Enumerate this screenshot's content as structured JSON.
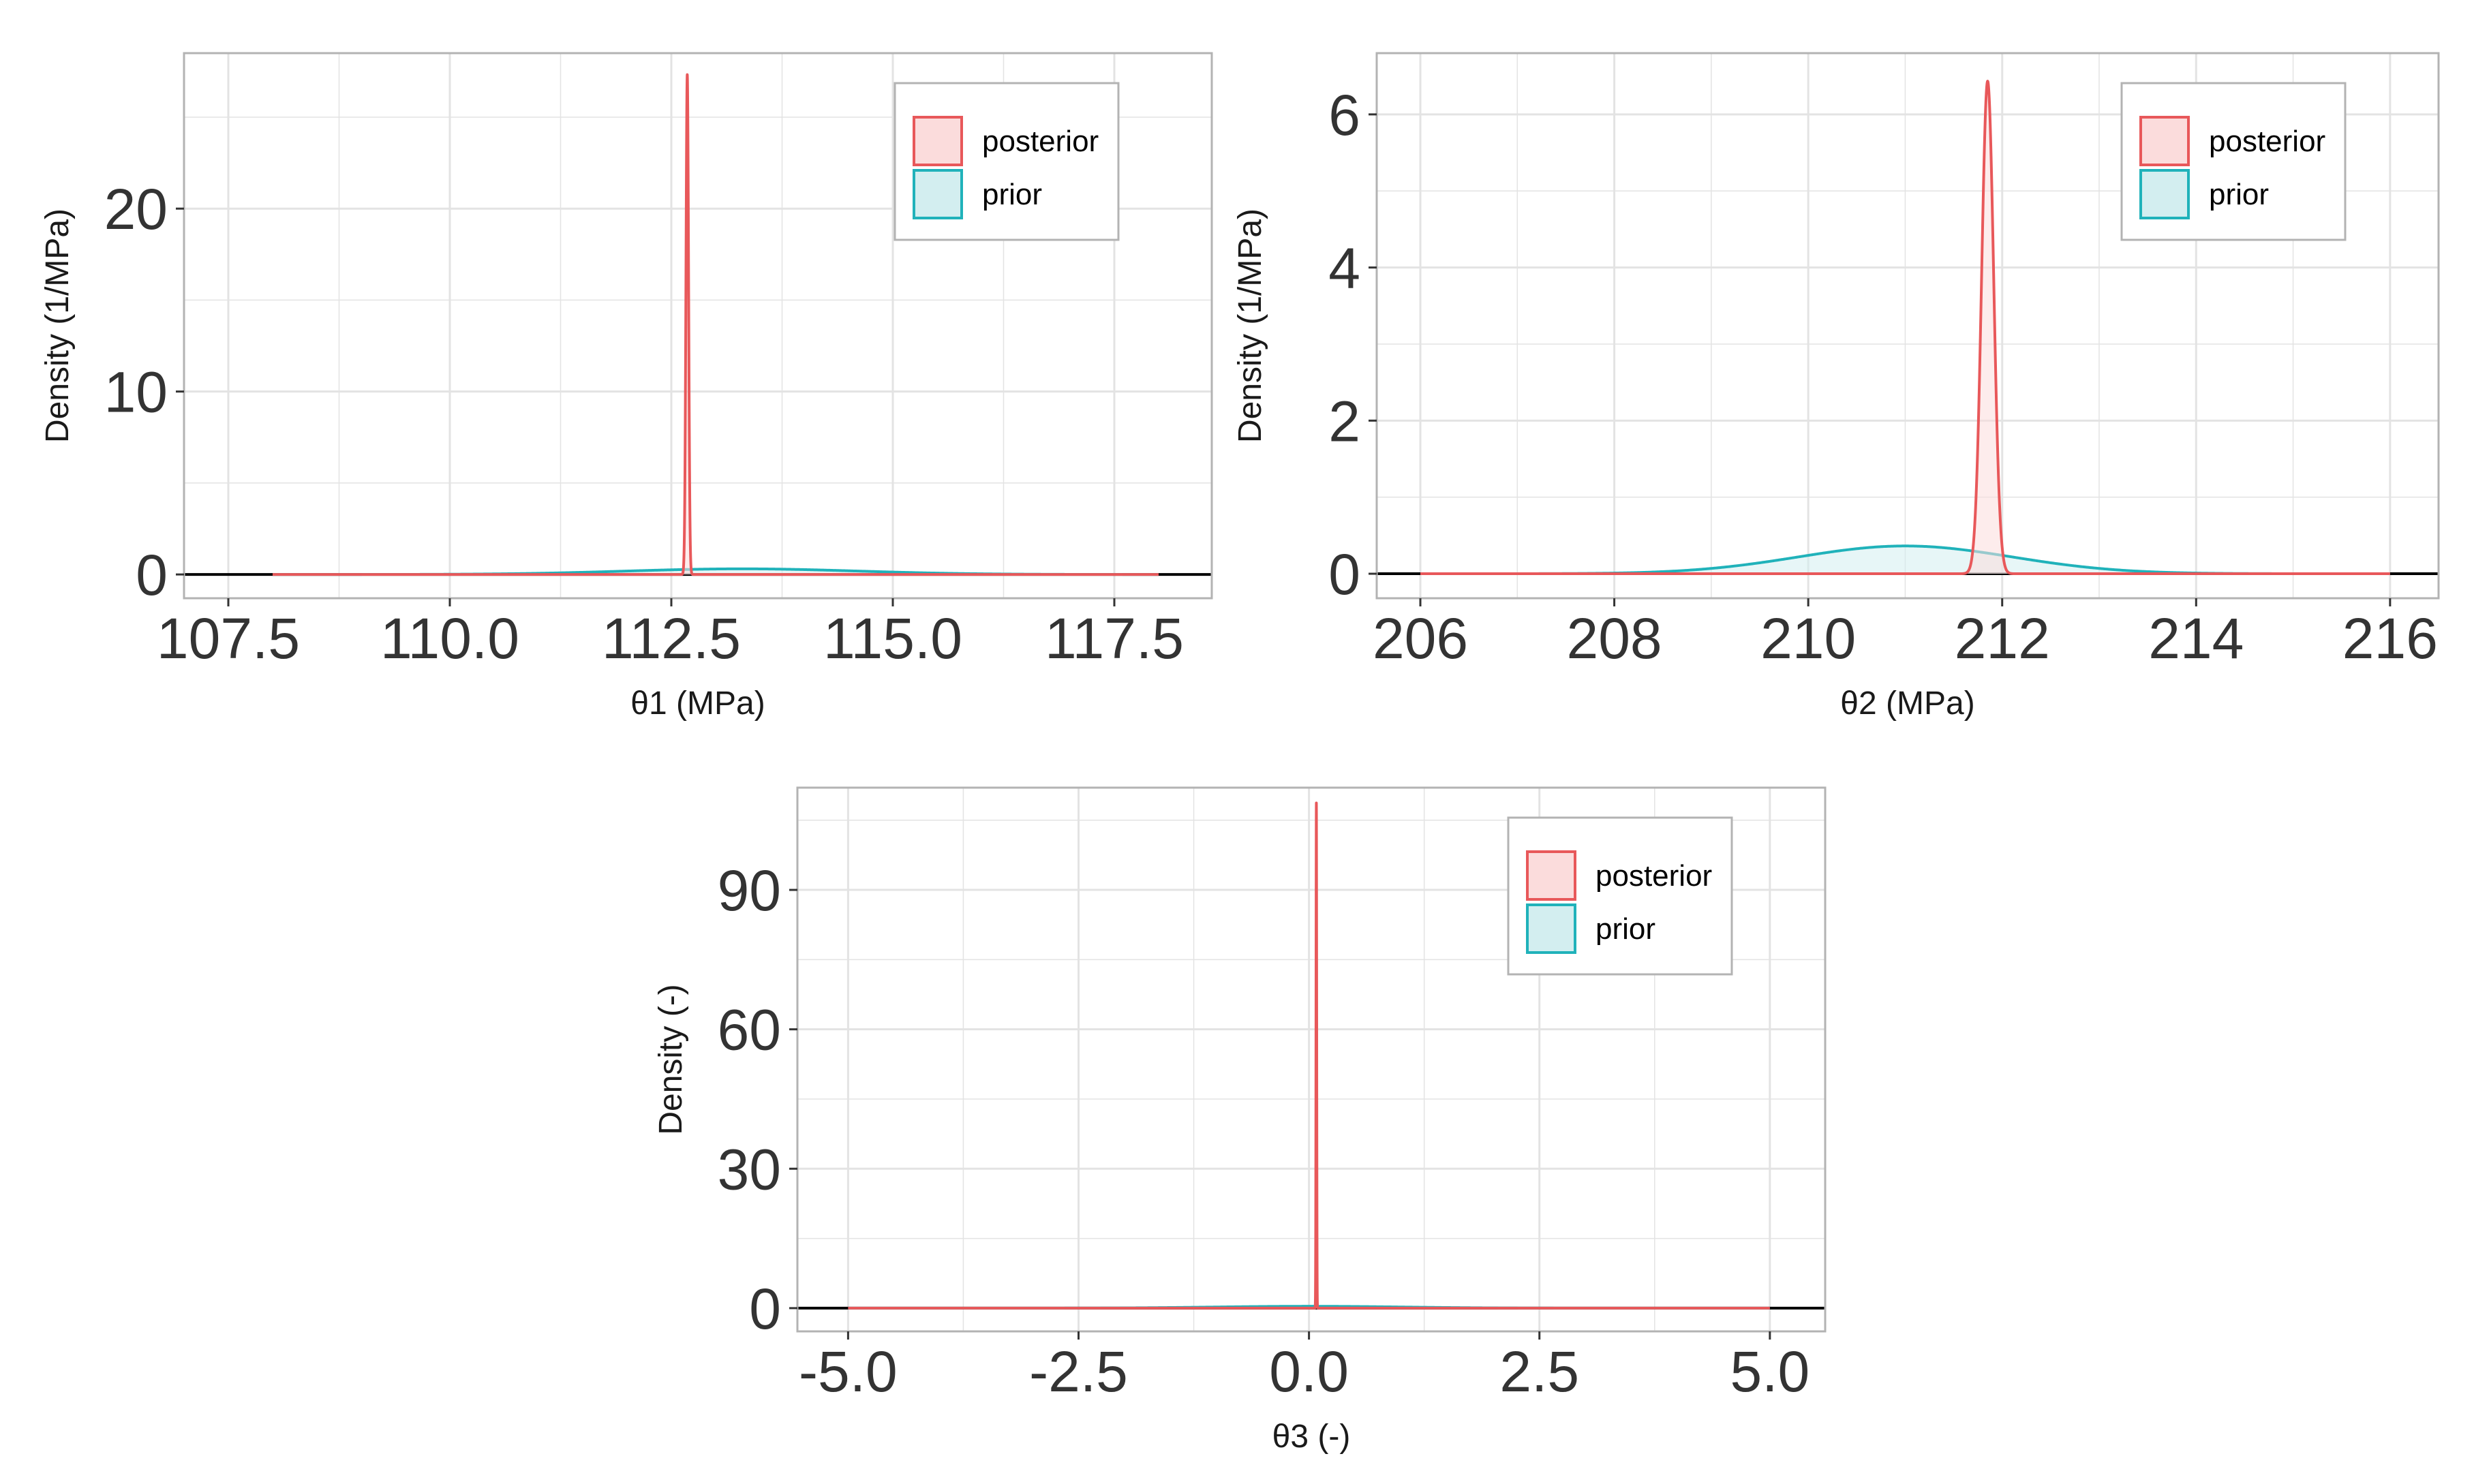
{
  "colors": {
    "posterior": "#e8585a",
    "posterior_fill": "#fbdcdc",
    "prior": "#20b2ba",
    "prior_fill": "#d3eef0",
    "grid": "#e3e3e3",
    "panel_border": "#b3b3b3",
    "baseline": "#000000"
  },
  "chart_data": [
    {
      "type": "area",
      "id": "theta1",
      "xlabel": "θ1 (MPa)",
      "ylabel": "Density (1/MPa)",
      "xlim": [
        107.0,
        118.6
      ],
      "ylim": [
        -1.3,
        28.5
      ],
      "xticks": [
        107.5,
        110.0,
        112.5,
        115.0,
        117.5
      ],
      "xtick_labels": [
        "107.5",
        "110.0",
        "112.5",
        "115.0",
        "117.5"
      ],
      "yticks": [
        0,
        10,
        20
      ],
      "ytick_labels": [
        "0",
        "10",
        "20"
      ],
      "legend": [
        "posterior",
        "prior"
      ],
      "legend_position": "top-right",
      "series": [
        {
          "name": "prior",
          "dist": "normal",
          "mean": 113.3,
          "sd": 1.3,
          "range": [
            108.0,
            118.0
          ]
        },
        {
          "name": "posterior",
          "dist": "normal",
          "mean": 112.68,
          "sd": 0.0146,
          "range": [
            108.0,
            118.0
          ]
        }
      ]
    },
    {
      "type": "area",
      "id": "theta2",
      "xlabel": "θ2 (MPa)",
      "ylabel": "Density (1/MPa)",
      "xlim": [
        205.55,
        216.5
      ],
      "ylim": [
        -0.32,
        6.8
      ],
      "xticks": [
        206,
        208,
        210,
        212,
        214,
        216
      ],
      "xtick_labels": [
        "206",
        "208",
        "210",
        "212",
        "214",
        "216"
      ],
      "yticks": [
        0,
        2,
        4,
        6
      ],
      "ytick_labels": [
        "0",
        "2",
        "4",
        "6"
      ],
      "legend": [
        "posterior",
        "prior"
      ],
      "legend_position": "top-right",
      "series": [
        {
          "name": "prior",
          "dist": "normal",
          "mean": 211.0,
          "sd": 1.1,
          "range": [
            206.0,
            216.0
          ]
        },
        {
          "name": "posterior",
          "dist": "normal",
          "mean": 211.85,
          "sd": 0.062,
          "range": [
            206.0,
            216.0
          ]
        }
      ]
    },
    {
      "type": "area",
      "id": "theta3",
      "xlabel": "θ3 (-)",
      "ylabel": "Density (-)",
      "xlim": [
        -5.55,
        5.6
      ],
      "ylim": [
        -5.0,
        112.0
      ],
      "xticks": [
        -5.0,
        -2.5,
        0.0,
        2.5,
        5.0
      ],
      "xtick_labels": [
        "-5.0",
        "-2.5",
        "0.0",
        "2.5",
        "5.0"
      ],
      "yticks": [
        0,
        30,
        60,
        90
      ],
      "ytick_labels": [
        "0",
        "30",
        "60",
        "90"
      ],
      "legend": [
        "posterior",
        "prior"
      ],
      "legend_position": "top-right",
      "series": [
        {
          "name": "prior",
          "dist": "normal",
          "mean": 0.0,
          "sd": 1.0,
          "range": [
            -5.0,
            5.0
          ]
        },
        {
          "name": "posterior",
          "dist": "normal",
          "mean": 0.08,
          "sd": 0.00367,
          "range": [
            -5.0,
            5.0
          ]
        }
      ]
    }
  ]
}
